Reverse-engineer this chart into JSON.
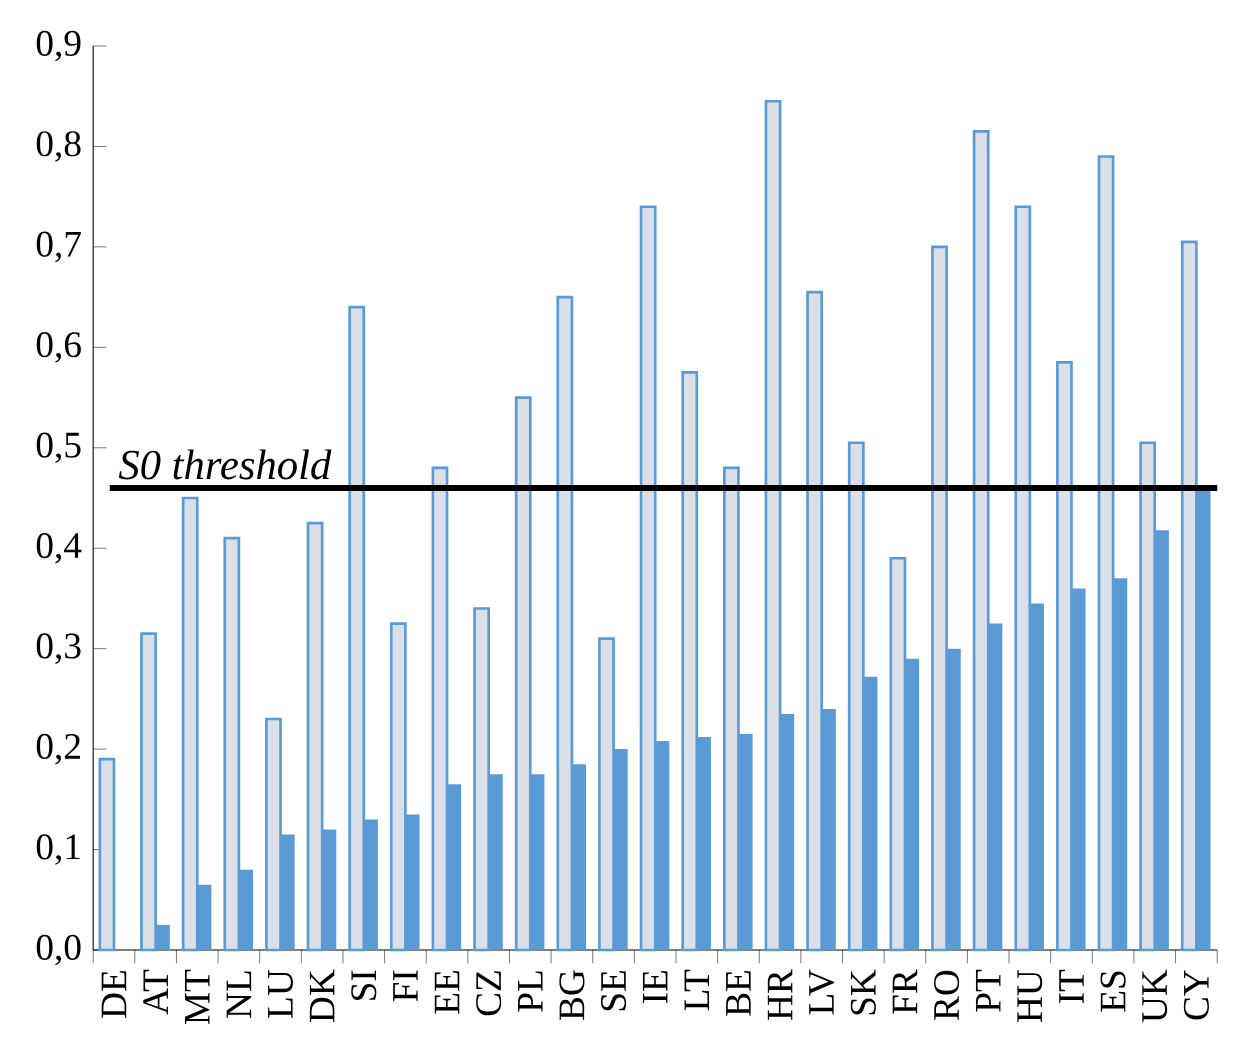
{
  "chart_data": {
    "type": "bar",
    "categories": [
      "DE",
      "AT",
      "MT",
      "NL",
      "LU",
      "DK",
      "SI",
      "FI",
      "EE",
      "CZ",
      "PL",
      "BG",
      "SE",
      "IE",
      "LT",
      "BE",
      "HR",
      "LV",
      "SK",
      "FR",
      "RO",
      "PT",
      "HU",
      "IT",
      "ES",
      "UK",
      "CY"
    ],
    "series": [
      {
        "color": "#dbe0e8",
        "values": [
          0.19,
          0.315,
          0.45,
          0.41,
          0.23,
          0.425,
          0.64,
          0.325,
          0.48,
          0.34,
          0.55,
          0.65,
          0.31,
          0.74,
          0.575,
          0.48,
          0.845,
          0.655,
          0.505,
          0.39,
          0.7,
          0.815,
          0.74,
          0.585,
          0.79,
          0.505,
          0.705
        ]
      },
      {
        "color": "#5b9bd5",
        "values": [
          null,
          0.025,
          0.065,
          0.08,
          0.115,
          0.12,
          0.13,
          0.135,
          0.165,
          0.175,
          0.175,
          0.185,
          0.2,
          0.208,
          0.212,
          0.215,
          0.235,
          0.24,
          0.272,
          0.29,
          0.3,
          0.325,
          0.345,
          0.36,
          0.37,
          0.418,
          0.46
        ]
      }
    ],
    "ylim": [
      0,
      0.9
    ],
    "yticks": [
      {
        "value": 0,
        "label": "0,0"
      },
      {
        "value": 0.1,
        "label": "0,1"
      },
      {
        "value": 0.2,
        "label": "0,2"
      },
      {
        "value": 0.3,
        "label": "0,3"
      },
      {
        "value": 0.4,
        "label": "0,4"
      },
      {
        "value": 0.5,
        "label": "0,5"
      },
      {
        "value": 0.6,
        "label": "0,6"
      },
      {
        "value": 0.7,
        "label": "0,7"
      },
      {
        "value": 0.8,
        "label": "0,8"
      },
      {
        "value": 0.9,
        "label": "0,9"
      }
    ],
    "ref_lines": [
      {
        "axis": "y",
        "value": 0.46,
        "label": "S0 threshold",
        "color": "#000000"
      }
    ]
  }
}
